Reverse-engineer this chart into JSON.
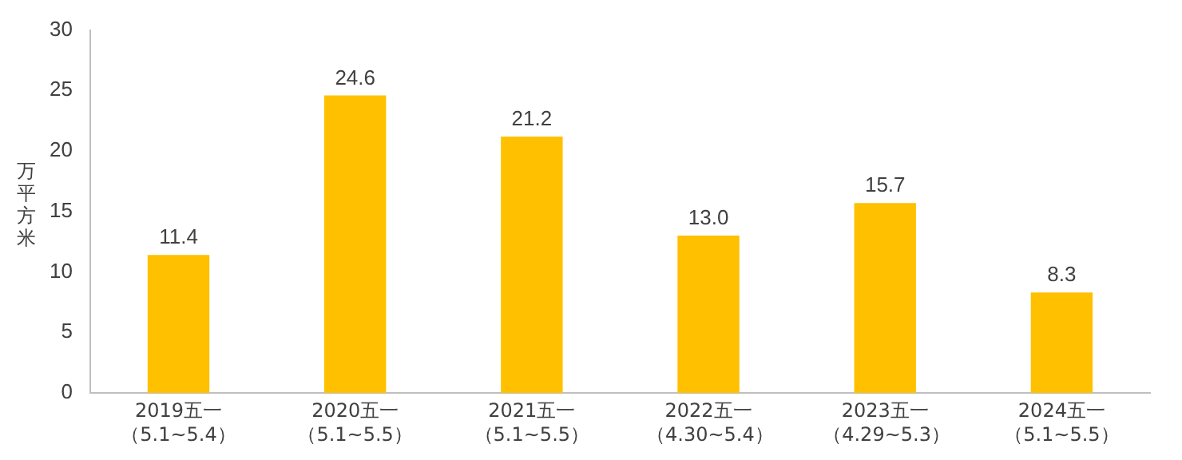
{
  "chart_data": {
    "type": "bar",
    "ylabel": "万平方米",
    "categories": [
      "2019五一（5.1~5.4）",
      "2020五一（5.1~5.5）",
      "2021五一（5.1~5.5）",
      "2022五一（4.30~5.4）",
      "2023五一（4.29~5.3）",
      "2024五一（5.1~5.5）"
    ],
    "values": [
      11.4,
      24.6,
      21.2,
      13.0,
      15.7,
      8.3
    ],
    "value_labels": [
      "11.4",
      "24.6",
      "21.2",
      "13.0",
      "15.7",
      "8.3"
    ],
    "color": "#ffc000",
    "ylim": [
      0,
      30
    ],
    "yticks": [
      0,
      5,
      10,
      15,
      20,
      25,
      30
    ],
    "grid": false,
    "legend": false
  }
}
